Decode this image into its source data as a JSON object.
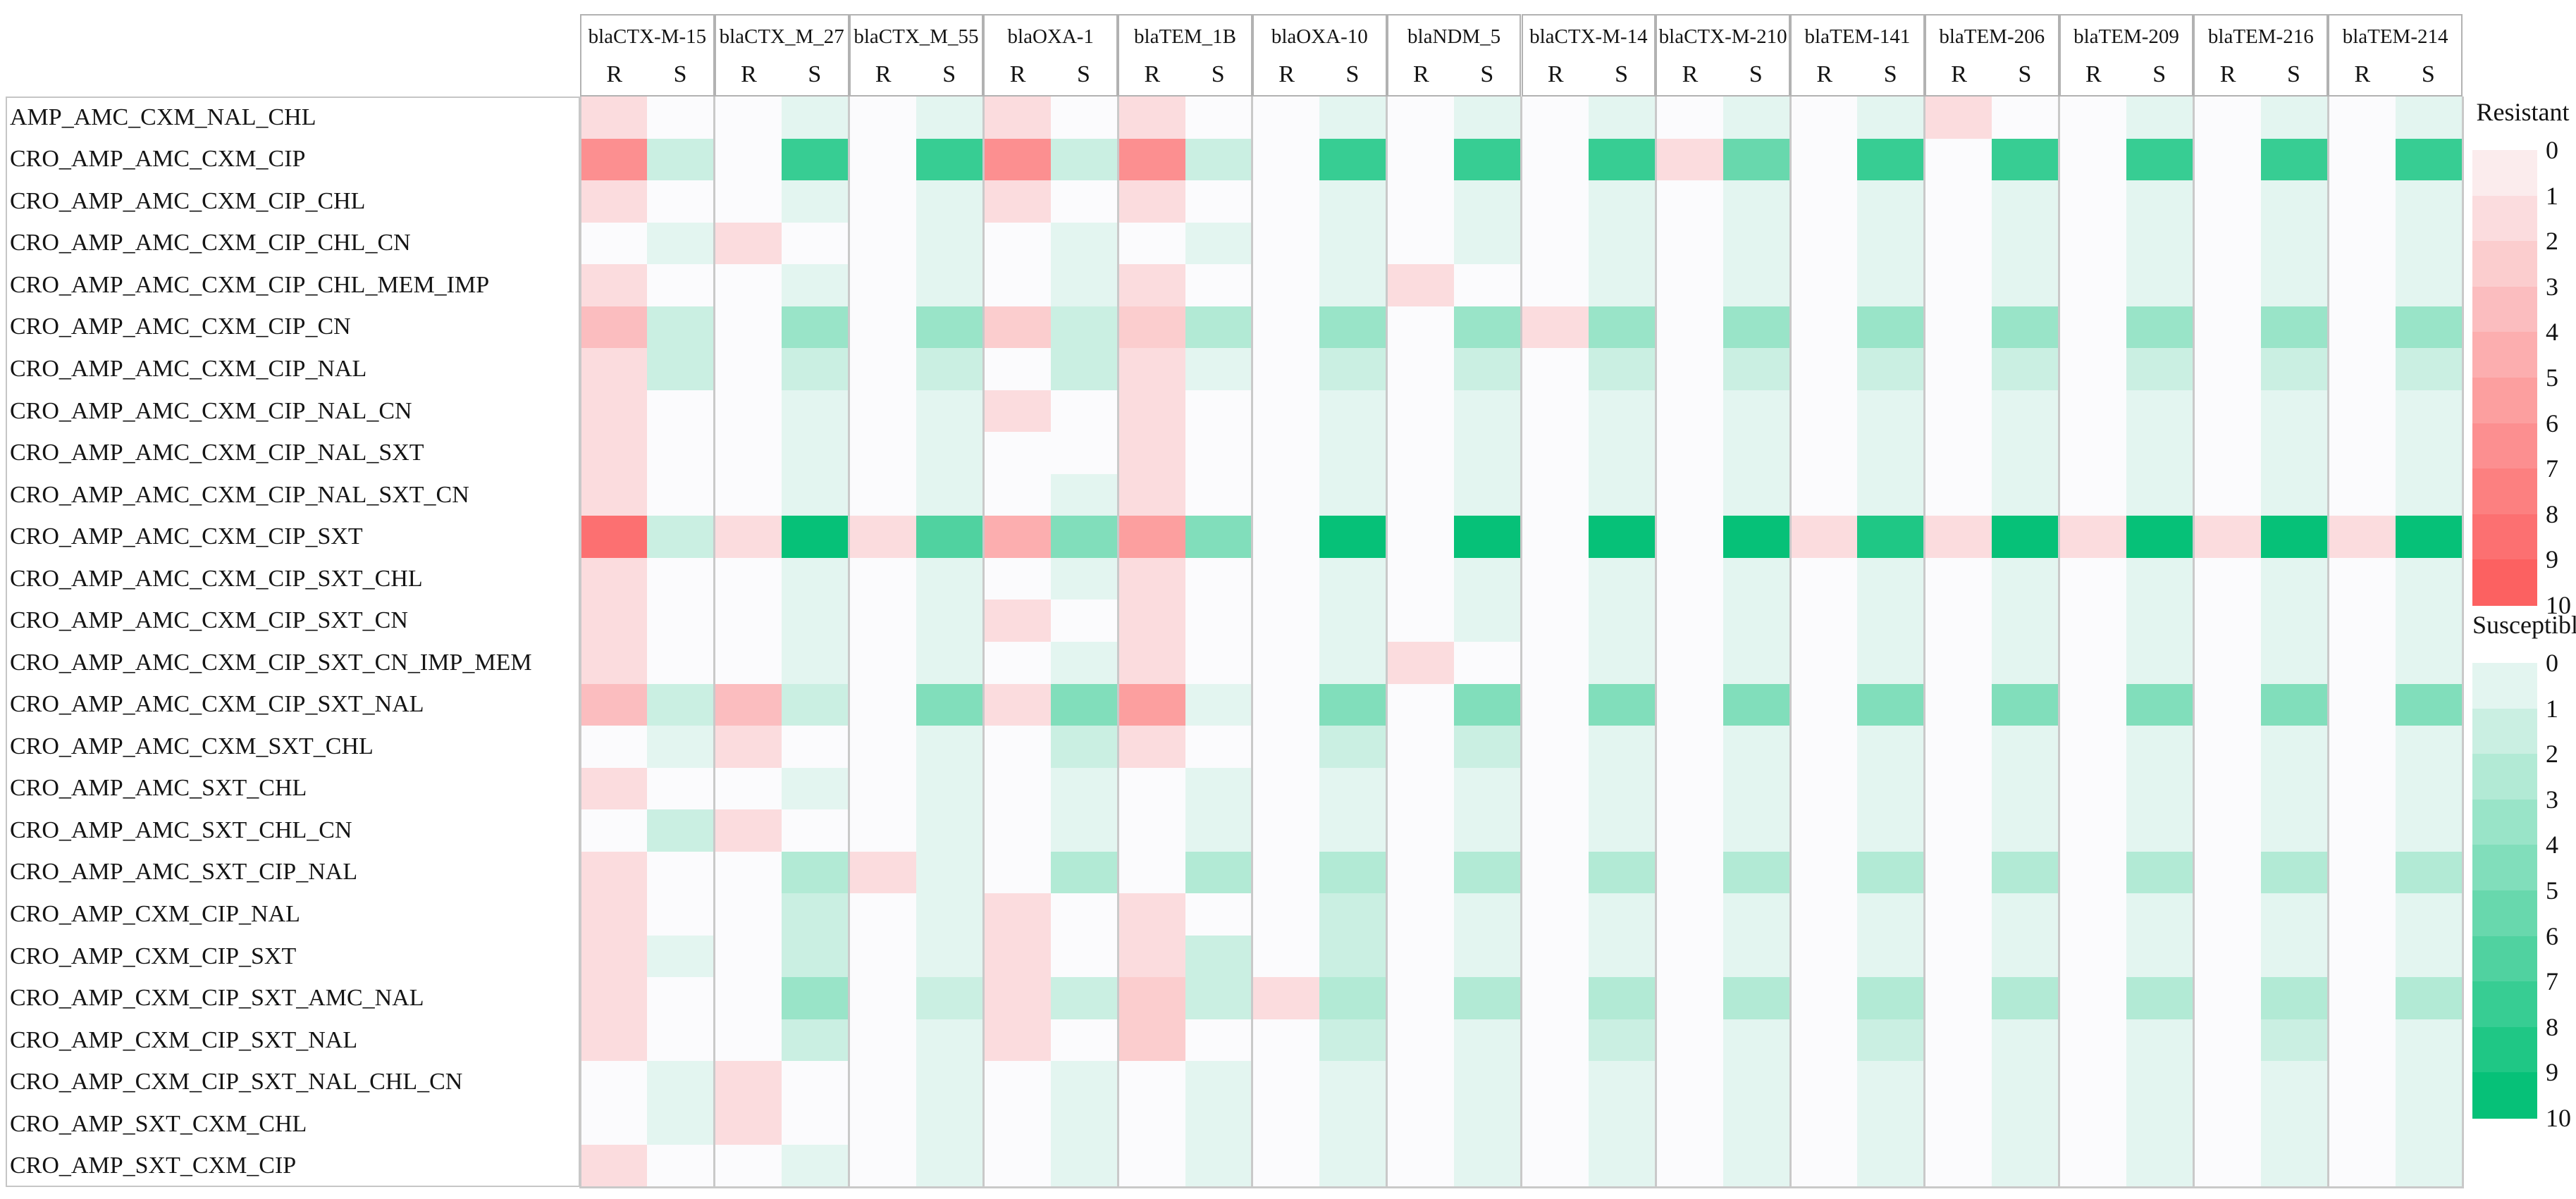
{
  "chart_data": {
    "type": "heatmap",
    "description": "Antibiotic resistance profile rows vs beta-lactamase gene columns, each gene split into Resistant (R, red scale) and Susceptible (S, green scale) counts 0-10",
    "genes": [
      "blaCTX-M-15",
      "blaCTX_M_27",
      "blaCTX_M_55",
      "blaOXA-1",
      "blaTEM_1B",
      "blaOXA-10",
      "blaNDM_5",
      "blaCTX-M-14",
      "blaCTX-M-210",
      "blaTEM-141",
      "blaTEM-206",
      "blaTEM-209",
      "blaTEM-216",
      "blaTEM-214"
    ],
    "sub_columns": [
      "R",
      "S"
    ],
    "rows": [
      "AMP_AMC_CXM_NAL_CHL",
      "CRO_AMP_AMC_CXM_CIP",
      "CRO_AMP_AMC_CXM_CIP_CHL",
      "CRO_AMP_AMC_CXM_CIP_CHL_CN",
      "CRO_AMP_AMC_CXM_CIP_CHL_MEM_IMP",
      "CRO_AMP_AMC_CXM_CIP_CN",
      "CRO_AMP_AMC_CXM_CIP_NAL",
      "CRO_AMP_AMC_CXM_CIP_NAL_CN",
      "CRO_AMP_AMC_CXM_CIP_NAL_SXT",
      "CRO_AMP_AMC_CXM_CIP_NAL_SXT_CN",
      "CRO_AMP_AMC_CXM_CIP_SXT",
      "CRO_AMP_AMC_CXM_CIP_SXT_CHL",
      "CRO_AMP_AMC_CXM_CIP_SXT_CN",
      "CRO_AMP_AMC_CXM_CIP_SXT_CN_IMP_MEM",
      "CRO_AMP_AMC_CXM_CIP_SXT_NAL",
      "CRO_AMP_AMC_CXM_SXT_CHL",
      "CRO_AMP_AMC_SXT_CHL",
      "CRO_AMP_AMC_SXT_CHL_CN",
      "CRO_AMP_AMC_SXT_CIP_NAL",
      "CRO_AMP_CXM_CIP_NAL",
      "CRO_AMP_CXM_CIP_SXT",
      "CRO_AMP_CXM_CIP_SXT_AMC_NAL",
      "CRO_AMP_CXM_CIP_SXT_NAL",
      "CRO_AMP_CXM_CIP_SXT_NAL_CHL_CN",
      "CRO_AMP_SXT_CXM_CHL",
      "CRO_AMP_SXT_CXM_CIP"
    ],
    "values": {
      "R": [
        [
          2,
          0,
          0,
          2,
          2,
          0,
          0,
          0,
          0,
          0,
          2,
          0,
          0,
          0
        ],
        [
          7,
          0,
          0,
          7,
          7,
          0,
          0,
          0,
          2,
          0,
          0,
          0,
          0,
          0
        ],
        [
          2,
          0,
          0,
          2,
          2,
          0,
          0,
          0,
          0,
          0,
          0,
          0,
          0,
          0
        ],
        [
          0,
          2,
          0,
          0,
          0,
          0,
          0,
          0,
          0,
          0,
          0,
          0,
          0,
          0
        ],
        [
          2,
          0,
          0,
          0,
          2,
          0,
          2,
          0,
          0,
          0,
          0,
          0,
          0,
          0
        ],
        [
          4,
          0,
          0,
          3,
          3,
          0,
          0,
          2,
          0,
          0,
          0,
          0,
          0,
          0
        ],
        [
          2,
          0,
          0,
          0,
          2,
          0,
          0,
          0,
          0,
          0,
          0,
          0,
          0,
          0
        ],
        [
          2,
          0,
          0,
          2,
          2,
          0,
          0,
          0,
          0,
          0,
          0,
          0,
          0,
          0
        ],
        [
          2,
          0,
          0,
          0,
          2,
          0,
          0,
          0,
          0,
          0,
          0,
          0,
          0,
          0
        ],
        [
          2,
          0,
          0,
          0,
          2,
          0,
          0,
          0,
          0,
          0,
          0,
          0,
          0,
          0
        ],
        [
          9,
          2,
          2,
          5,
          6,
          0,
          0,
          0,
          0,
          2,
          2,
          2,
          2,
          2
        ],
        [
          2,
          0,
          0,
          0,
          2,
          0,
          0,
          0,
          0,
          0,
          0,
          0,
          0,
          0
        ],
        [
          2,
          0,
          0,
          2,
          2,
          0,
          0,
          0,
          0,
          0,
          0,
          0,
          0,
          0
        ],
        [
          2,
          0,
          0,
          0,
          2,
          0,
          2,
          0,
          0,
          0,
          0,
          0,
          0,
          0
        ],
        [
          4,
          4,
          0,
          2,
          6,
          0,
          0,
          0,
          0,
          0,
          0,
          0,
          0,
          0
        ],
        [
          0,
          2,
          0,
          0,
          2,
          0,
          0,
          0,
          0,
          0,
          0,
          0,
          0,
          0
        ],
        [
          2,
          0,
          0,
          0,
          0,
          0,
          0,
          0,
          0,
          0,
          0,
          0,
          0,
          0
        ],
        [
          0,
          2,
          0,
          0,
          0,
          0,
          0,
          0,
          0,
          0,
          0,
          0,
          0,
          0
        ],
        [
          2,
          0,
          2,
          0,
          0,
          0,
          0,
          0,
          0,
          0,
          0,
          0,
          0,
          0
        ],
        [
          2,
          0,
          0,
          2,
          2,
          0,
          0,
          0,
          0,
          0,
          0,
          0,
          0,
          0
        ],
        [
          2,
          0,
          0,
          2,
          2,
          0,
          0,
          0,
          0,
          0,
          0,
          0,
          0,
          0
        ],
        [
          2,
          0,
          0,
          2,
          3,
          2,
          0,
          0,
          0,
          0,
          0,
          0,
          0,
          0
        ],
        [
          2,
          0,
          0,
          2,
          3,
          0,
          0,
          0,
          0,
          0,
          0,
          0,
          0,
          0
        ],
        [
          0,
          2,
          0,
          0,
          0,
          0,
          0,
          0,
          0,
          0,
          0,
          0,
          0,
          0
        ],
        [
          0,
          2,
          0,
          0,
          0,
          0,
          0,
          0,
          0,
          0,
          0,
          0,
          0,
          0
        ],
        [
          2,
          0,
          0,
          0,
          0,
          0,
          0,
          0,
          0,
          0,
          0,
          0,
          0,
          0
        ]
      ],
      "S": [
        [
          0,
          1,
          1,
          0,
          0,
          1,
          1,
          1,
          1,
          1,
          0,
          1,
          1,
          1
        ],
        [
          2,
          8,
          8,
          2,
          2,
          8,
          8,
          8,
          6,
          8,
          8,
          8,
          8,
          8
        ],
        [
          0,
          1,
          1,
          0,
          0,
          1,
          1,
          1,
          1,
          1,
          1,
          1,
          1,
          1
        ],
        [
          1,
          0,
          1,
          1,
          1,
          1,
          1,
          1,
          1,
          1,
          1,
          1,
          1,
          1
        ],
        [
          0,
          1,
          1,
          1,
          0,
          1,
          0,
          1,
          1,
          1,
          1,
          1,
          1,
          1
        ],
        [
          2,
          4,
          4,
          2,
          3,
          4,
          4,
          4,
          4,
          4,
          4,
          4,
          4,
          4
        ],
        [
          2,
          2,
          2,
          2,
          1,
          2,
          2,
          2,
          2,
          2,
          2,
          2,
          2,
          2
        ],
        [
          0,
          1,
          1,
          0,
          0,
          1,
          1,
          1,
          1,
          1,
          1,
          1,
          1,
          1
        ],
        [
          0,
          1,
          1,
          0,
          0,
          1,
          1,
          1,
          1,
          1,
          1,
          1,
          1,
          1
        ],
        [
          0,
          1,
          1,
          1,
          0,
          1,
          1,
          1,
          1,
          1,
          1,
          1,
          1,
          1
        ],
        [
          2,
          10,
          7,
          5,
          5,
          10,
          10,
          10,
          10,
          9,
          10,
          10,
          10,
          10
        ],
        [
          0,
          1,
          1,
          1,
          0,
          1,
          1,
          1,
          1,
          1,
          1,
          1,
          1,
          1
        ],
        [
          0,
          1,
          1,
          0,
          0,
          1,
          1,
          1,
          1,
          1,
          1,
          1,
          1,
          1
        ],
        [
          0,
          1,
          1,
          1,
          0,
          1,
          0,
          1,
          1,
          1,
          1,
          1,
          1,
          1
        ],
        [
          2,
          2,
          5,
          5,
          1,
          5,
          5,
          5,
          5,
          5,
          5,
          5,
          5,
          5
        ],
        [
          1,
          0,
          1,
          2,
          0,
          2,
          2,
          1,
          1,
          1,
          1,
          1,
          1,
          1
        ],
        [
          0,
          1,
          1,
          1,
          1,
          1,
          1,
          1,
          1,
          1,
          1,
          1,
          1,
          1
        ],
        [
          2,
          0,
          1,
          1,
          1,
          1,
          1,
          1,
          1,
          1,
          1,
          1,
          1,
          1
        ],
        [
          0,
          3,
          1,
          3,
          3,
          3,
          3,
          3,
          3,
          3,
          3,
          3,
          3,
          3
        ],
        [
          0,
          2,
          1,
          0,
          0,
          2,
          1,
          1,
          1,
          1,
          1,
          1,
          1,
          1
        ],
        [
          1,
          2,
          1,
          0,
          2,
          2,
          1,
          1,
          1,
          1,
          1,
          1,
          1,
          1
        ],
        [
          0,
          4,
          2,
          2,
          2,
          3,
          3,
          3,
          3,
          3,
          3,
          3,
          3,
          3
        ],
        [
          0,
          2,
          1,
          0,
          0,
          2,
          1,
          2,
          1,
          2,
          1,
          1,
          2,
          1
        ],
        [
          1,
          0,
          1,
          1,
          1,
          1,
          1,
          1,
          1,
          1,
          1,
          1,
          1,
          1
        ],
        [
          1,
          0,
          1,
          1,
          1,
          1,
          1,
          1,
          1,
          1,
          1,
          1,
          1,
          1
        ],
        [
          0,
          1,
          1,
          1,
          1,
          1,
          1,
          1,
          1,
          1,
          1,
          1,
          1,
          1
        ]
      ]
    },
    "scale": {
      "min": 0,
      "max": 10
    },
    "legend": {
      "resistant": {
        "title": "Resistant",
        "ticks": [
          "0",
          "1",
          "2",
          "3",
          "4",
          "5",
          "6",
          "7",
          "8",
          "9",
          "10"
        ]
      },
      "susceptible": {
        "title": "Susceptible",
        "ticks": [
          "0",
          "1",
          "2",
          "3",
          "4",
          "5",
          "6",
          "7",
          "8",
          "9",
          "10"
        ]
      }
    },
    "colors": {
      "base": "#fbfbfd",
      "resistant_max": "#fc6161",
      "susceptible_max": "#06c178",
      "separator": "#c9c9c9",
      "header_border": "#b2b2b2",
      "panel_border": "#c6c6c6"
    },
    "layout_hints": {
      "grid": false,
      "legend_position": "right",
      "columns_split": "R red scale / S green scale per gene"
    }
  }
}
